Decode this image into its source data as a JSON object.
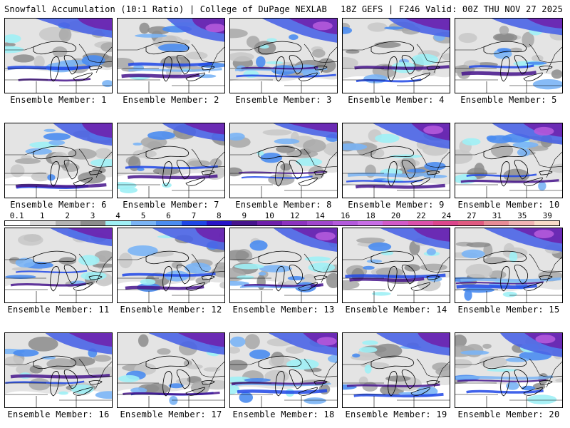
{
  "header": {
    "title_left": "Snowfall Accumulation (10:1 Ratio) | College of DuPage NEXLAB",
    "title_right": "18Z GEFS | F246 Valid: 00Z THU NOV 27 2025"
  },
  "legend": {
    "labels": [
      "0.1",
      "1",
      "2",
      "3",
      "4",
      "5",
      "6",
      "7",
      "8",
      "9",
      "10",
      "12",
      "14",
      "16",
      "18",
      "20",
      "22",
      "24",
      "27",
      "31",
      "35",
      "39"
    ],
    "colors": [
      "#ffffff",
      "#dcdcdc",
      "#b4b4b4",
      "#8c8c8c",
      "#9ff0f5",
      "#7ab4f5",
      "#4a8cf0",
      "#1e46e6",
      "#2814c8",
      "#46148c",
      "#6e1eaa",
      "#8c32be",
      "#a046cd",
      "#b45adc",
      "#c86ee6",
      "#d25ac8",
      "#dc50aa",
      "#dc468c",
      "#e05a80",
      "#e68c96",
      "#f0b4b4",
      "#f8dcc8"
    ]
  },
  "panels": [
    {
      "label": "Ensemble Member: 1",
      "intensity": 0.55
    },
    {
      "label": "Ensemble Member: 2",
      "intensity": 0.7
    },
    {
      "label": "Ensemble Member: 3",
      "intensity": 0.8
    },
    {
      "label": "Ensemble Member: 4",
      "intensity": 0.5
    },
    {
      "label": "Ensemble Member: 5",
      "intensity": 0.35
    },
    {
      "label": "Ensemble Member: 6",
      "intensity": 0.6
    },
    {
      "label": "Ensemble Member: 7",
      "intensity": 0.45
    },
    {
      "label": "Ensemble Member: 8",
      "intensity": 0.35
    },
    {
      "label": "Ensemble Member: 9",
      "intensity": 0.75
    },
    {
      "label": "Ensemble Member: 10",
      "intensity": 0.65
    },
    {
      "label": "Ensemble Member: 11",
      "intensity": 0.4
    },
    {
      "label": "Ensemble Member: 12",
      "intensity": 0.5
    },
    {
      "label": "Ensemble Member: 13",
      "intensity": 0.8
    },
    {
      "label": "Ensemble Member: 14",
      "intensity": 0.6
    },
    {
      "label": "Ensemble Member: 15",
      "intensity": 0.75
    },
    {
      "label": "Ensemble Member: 16",
      "intensity": 0.5
    },
    {
      "label": "Ensemble Member: 17",
      "intensity": 0.6
    },
    {
      "label": "Ensemble Member: 18",
      "intensity": 0.75
    },
    {
      "label": "Ensemble Member: 19",
      "intensity": 0.55
    },
    {
      "label": "Ensemble Member: 20",
      "intensity": 0.8
    }
  ]
}
